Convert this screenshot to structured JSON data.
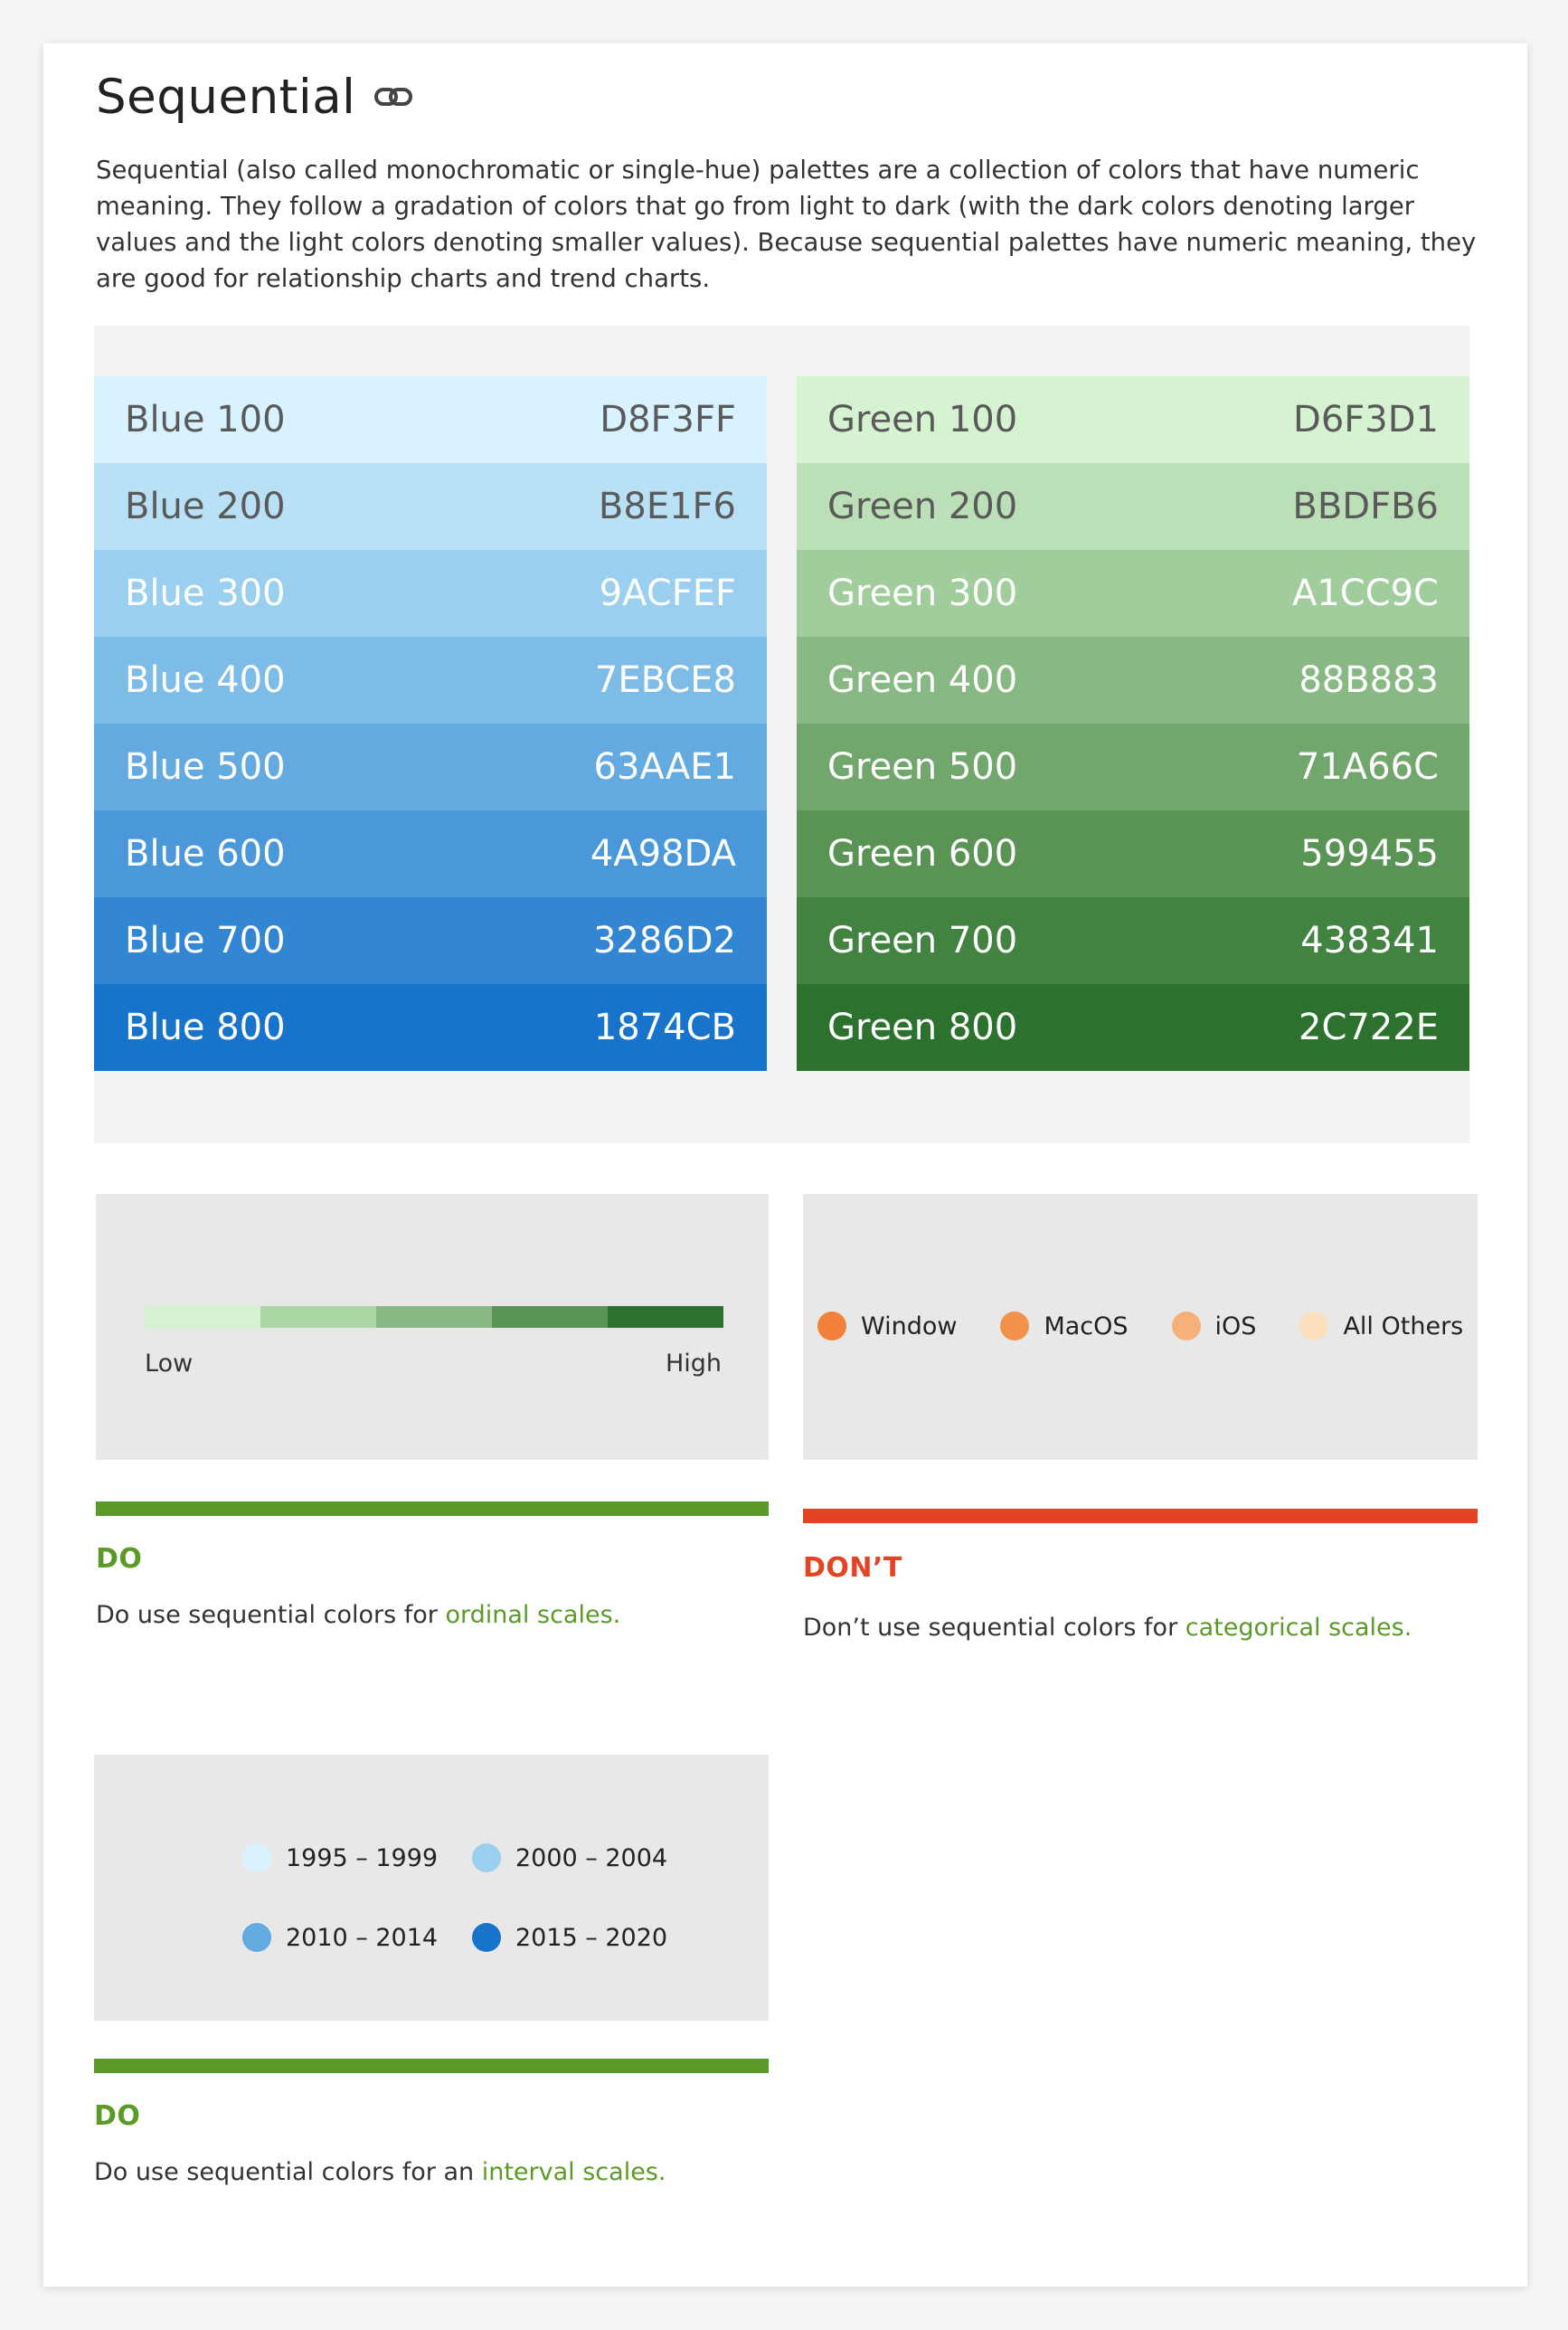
{
  "section": {
    "title": "Sequential",
    "link_icon": "link-icon",
    "intro": "Sequential (also called monochromatic or single-hue) palettes are a collection of colors that have numeric meaning. They follow a gradation of colors that go from light to dark (with the dark colors denoting larger values and the light colors denoting smaller values). Because sequential palettes have numeric meaning, they are good for relationship charts and trend charts."
  },
  "palettes": {
    "blue": [
      {
        "name": "Blue 100",
        "hex": "D8F3FF",
        "color": "#D8F3FF",
        "text": "#5a5a5a"
      },
      {
        "name": "Blue 200",
        "hex": "B8E1F6",
        "color": "#B8E1F6",
        "text": "#5a5a5a"
      },
      {
        "name": "Blue 300",
        "hex": "9ACFEF",
        "color": "#9ACFEF",
        "text": "#ffffff"
      },
      {
        "name": "Blue 400",
        "hex": "7EBCE8",
        "color": "#7EBCE8",
        "text": "#ffffff"
      },
      {
        "name": "Blue 500",
        "hex": "63AAE1",
        "color": "#63AAE1",
        "text": "#ffffff"
      },
      {
        "name": "Blue 600",
        "hex": "4A98DA",
        "color": "#4A98DA",
        "text": "#ffffff"
      },
      {
        "name": "Blue 700",
        "hex": "3286D2",
        "color": "#3286D2",
        "text": "#ffffff"
      },
      {
        "name": "Blue 800",
        "hex": "1874CB",
        "color": "#1874CB",
        "text": "#ffffff"
      }
    ],
    "green": [
      {
        "name": "Green 100",
        "hex": "D6F3D1",
        "color": "#D6F3D1",
        "text": "#5a5a5a"
      },
      {
        "name": "Green 200",
        "hex": "BBDFB6",
        "color": "#BBDFB6",
        "text": "#5a5a5a"
      },
      {
        "name": "Green 300",
        "hex": "A1CC9C",
        "color": "#A1CC9C",
        "text": "#ffffff"
      },
      {
        "name": "Green 400",
        "hex": "88B883",
        "color": "#88B883",
        "text": "#ffffff"
      },
      {
        "name": "Green 500",
        "hex": "71A66C",
        "color": "#71A66C",
        "text": "#ffffff"
      },
      {
        "name": "Green 600",
        "hex": "599455",
        "color": "#599455",
        "text": "#ffffff"
      },
      {
        "name": "Green 700",
        "hex": "438341",
        "color": "#438341",
        "text": "#ffffff"
      },
      {
        "name": "Green 800",
        "hex": "2C722E",
        "color": "#2C722E",
        "text": "#ffffff"
      }
    ]
  },
  "examples": {
    "ordinal": {
      "gradient_colors": [
        "#D6F3D1",
        "#ADD6A7",
        "#88B883",
        "#599455",
        "#2C722E"
      ],
      "low_label": "Low",
      "high_label": "High",
      "verdict": "DO",
      "verdict_color": "#5c9a28",
      "text_prefix": "Do use sequential colors for ",
      "text_highlight": "ordinal scales."
    },
    "categorical": {
      "legend": [
        {
          "label": "Window",
          "color": "#F0803A"
        },
        {
          "label": "MacOS",
          "color": "#F2924A"
        },
        {
          "label": "iOS",
          "color": "#F6B07A"
        },
        {
          "label": "All Others",
          "color": "#FCE0BE"
        }
      ],
      "verdict": "DON’T",
      "verdict_color": "#e24424",
      "text_prefix": "Don’t use sequential colors for ",
      "text_highlight": "categorical scales."
    },
    "interval": {
      "legend": [
        {
          "label": "1995 – 1999",
          "color": "#D8F3FF"
        },
        {
          "label": "2000 – 2004",
          "color": "#9ACFEF"
        },
        {
          "label": "2010 – 2014",
          "color": "#63AAE1"
        },
        {
          "label": "2015 – 2020",
          "color": "#1874CB"
        }
      ],
      "verdict": "DO",
      "verdict_color": "#5c9a28",
      "text_prefix": "Do use sequential colors for an ",
      "text_highlight": "interval scales."
    }
  }
}
